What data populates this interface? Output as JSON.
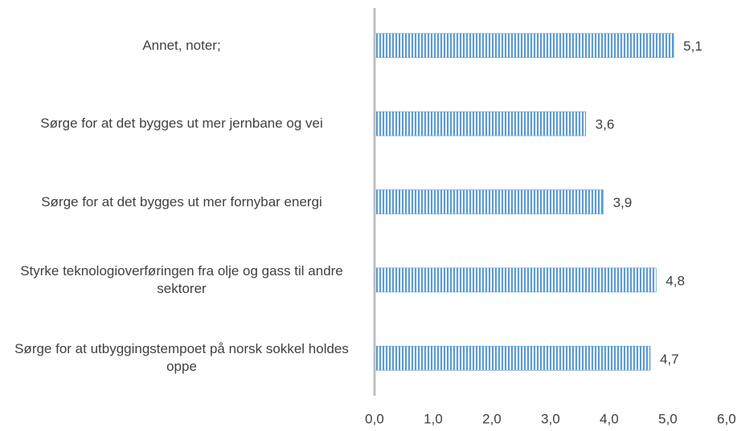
{
  "chart_data": {
    "type": "bar",
    "orientation": "horizontal",
    "categories": [
      "Annet, noter;",
      "Sørge for at det bygges ut mer jernbane og vei",
      "Sørge for at det bygges ut mer fornybar energi",
      "Styrke teknologioverføringen fra olje og gass til andre sektorer",
      "Sørge for at utbyggingstempoet på norsk sokkel holdes oppe"
    ],
    "values": [
      5.1,
      3.6,
      3.9,
      4.8,
      4.7
    ],
    "value_labels": [
      "5,1",
      "3,6",
      "3,9",
      "4,8",
      "4,7"
    ],
    "color": "#5b9bd5",
    "xlim": [
      0,
      6
    ],
    "xticks": [
      {
        "value": 0,
        "label": "0,0"
      },
      {
        "value": 1,
        "label": "1,0"
      },
      {
        "value": 2,
        "label": "2,0"
      },
      {
        "value": 3,
        "label": "3,0"
      },
      {
        "value": 4,
        "label": "4,0"
      },
      {
        "value": 5,
        "label": "5,0"
      },
      {
        "value": 6,
        "label": "6,0"
      }
    ],
    "grid": false
  }
}
